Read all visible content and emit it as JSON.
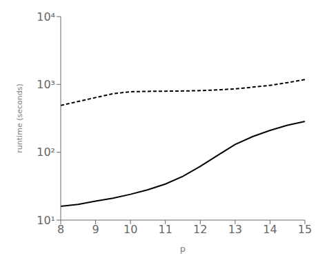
{
  "chart_data": {
    "type": "line",
    "xlabel": "p",
    "ylabel": "runtime (seconds)",
    "x": [
      8,
      8.5,
      9,
      9.5,
      10,
      10.5,
      11,
      11.5,
      12,
      12.5,
      13,
      13.5,
      14,
      14.5,
      15
    ],
    "series": [
      {
        "color": "#000000",
        "line_style": "solid",
        "values": [
          16,
          17,
          19,
          21,
          24,
          28,
          34,
          44,
          62,
          90,
          130,
          170,
          210,
          250,
          285
        ]
      },
      {
        "color": "#000000",
        "line_style": "dashed",
        "values": [
          490,
          560,
          640,
          730,
          780,
          790,
          795,
          800,
          810,
          830,
          860,
          910,
          970,
          1060,
          1180
        ]
      }
    ],
    "xlim": [
      8,
      15
    ],
    "ylim": [
      10,
      10000
    ],
    "xticks": [
      8,
      9,
      10,
      11,
      12,
      13,
      14,
      15
    ],
    "yticks": [
      {
        "value": 10,
        "label": "10¹"
      },
      {
        "value": 100,
        "label": "10²"
      },
      {
        "value": 1000,
        "label": "10³"
      },
      {
        "value": 10000,
        "label": "10⁴"
      }
    ],
    "log": "y",
    "grid": false
  }
}
